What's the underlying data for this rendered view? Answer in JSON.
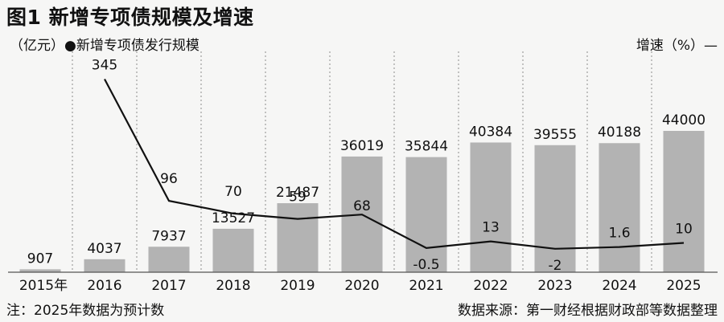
{
  "title": "图1 新增专项债规模及增速",
  "unit_legend": "（亿元）●新增专项债发行规模",
  "y2_label": "增速（%）—",
  "note": "注：2025年数据为预计数",
  "source": "数据来源：第一财经根据财政部等数据整理",
  "colors": {
    "bar": "#b3b3b3",
    "line": "#111111",
    "background": "#f6f6f5"
  },
  "chart_data": {
    "type": "bar",
    "categories": [
      "2015年",
      "2016",
      "2017",
      "2018",
      "2019",
      "2020",
      "2021",
      "2022",
      "2023",
      "2024",
      "2025"
    ],
    "series": [
      {
        "name": "新增专项债发行规模",
        "unit": "亿元",
        "type": "bar",
        "values": [
          907,
          4037,
          7937,
          13527,
          21487,
          36019,
          35844,
          40384,
          39555,
          40188,
          44000
        ],
        "labels": [
          "907",
          "4037",
          "7937",
          "13527",
          "21487",
          "36019",
          "35844",
          "40384",
          "39555",
          "40188",
          "44000"
        ]
      },
      {
        "name": "增速",
        "unit": "%",
        "type": "line",
        "values": [
          null,
          345,
          96,
          70,
          59,
          68,
          -0.5,
          13,
          -2,
          1.6,
          10
        ],
        "labels": [
          "",
          "345",
          "96",
          "70",
          "59",
          "68",
          "-0.5",
          "13",
          "-2",
          "1.6",
          "10"
        ]
      }
    ],
    "ylim": [
      0,
      50000
    ],
    "y2lim": [
      -50,
      400
    ],
    "grid": "vertical dashed",
    "legend": "top-left"
  }
}
